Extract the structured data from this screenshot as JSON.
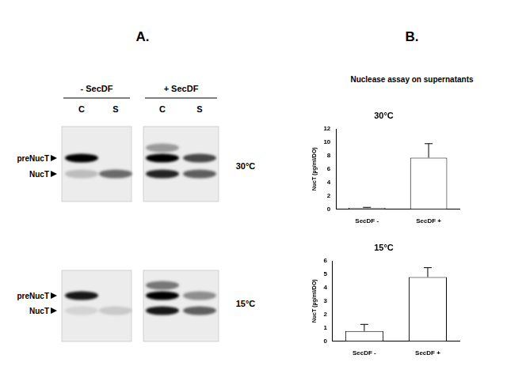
{
  "panel_labels": [
    "A.",
    "B."
  ],
  "blots": {
    "headers": [
      "- SecDF",
      "+ SecDF"
    ],
    "lanes": [
      "C",
      "S"
    ],
    "bands": [
      "preNucT",
      "NucT"
    ],
    "rows": [
      "30°C",
      "15°C"
    ]
  },
  "panel_b_title": "Nuclease assay on supernatants",
  "chart_data": [
    {
      "type": "bar",
      "title": "30°C",
      "categories": [
        "SecDF -",
        "SecDF +"
      ],
      "values": [
        0.2,
        7.7
      ],
      "errors": [
        0.05,
        2.1
      ],
      "color": "#ffffff",
      "y_label": "NucT (µg/ml/DO)",
      "ylim": [
        0,
        12
      ],
      "yticks": [
        0,
        2,
        4,
        6,
        8,
        10,
        12
      ],
      "grid": false
    },
    {
      "type": "bar",
      "title": "15°C",
      "categories": [
        "SecDF -",
        "SecDF +"
      ],
      "values": [
        0.75,
        4.8
      ],
      "errors": [
        0.5,
        0.7
      ],
      "color": "#ffffff",
      "y_label": "NucT (µg/ml/DO)",
      "ylim": [
        0,
        6
      ],
      "yticks": [
        0,
        1,
        2,
        3,
        4,
        5,
        6
      ],
      "grid": false
    }
  ]
}
